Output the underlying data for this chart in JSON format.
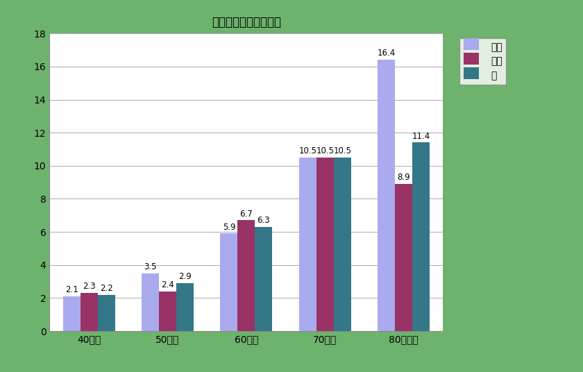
{
  "title": "全緑内障年代別有病率",
  "categories": [
    "40歳台",
    "50歳台",
    "60歳台",
    "70歳台",
    "80歳以上"
  ],
  "series": {
    "男性": [
      2.1,
      3.5,
      5.9,
      10.5,
      16.4
    ],
    "女性": [
      2.3,
      2.4,
      6.7,
      10.5,
      8.9
    ],
    "全": [
      2.2,
      2.9,
      6.3,
      10.5,
      11.4
    ]
  },
  "bar_colors": {
    "男性": "#aaaaee",
    "女性": "#993366",
    "全": "#337788"
  },
  "ylim": [
    0,
    18
  ],
  "yticks": [
    0,
    2,
    4,
    6,
    8,
    10,
    12,
    14,
    16,
    18
  ],
  "background_outer": "#6db36d",
  "background_plot": "#ffffff",
  "bar_width": 0.22,
  "title_fontsize": 12,
  "tick_fontsize": 10,
  "label_fontsize": 8.5,
  "legend_fontsize": 10
}
